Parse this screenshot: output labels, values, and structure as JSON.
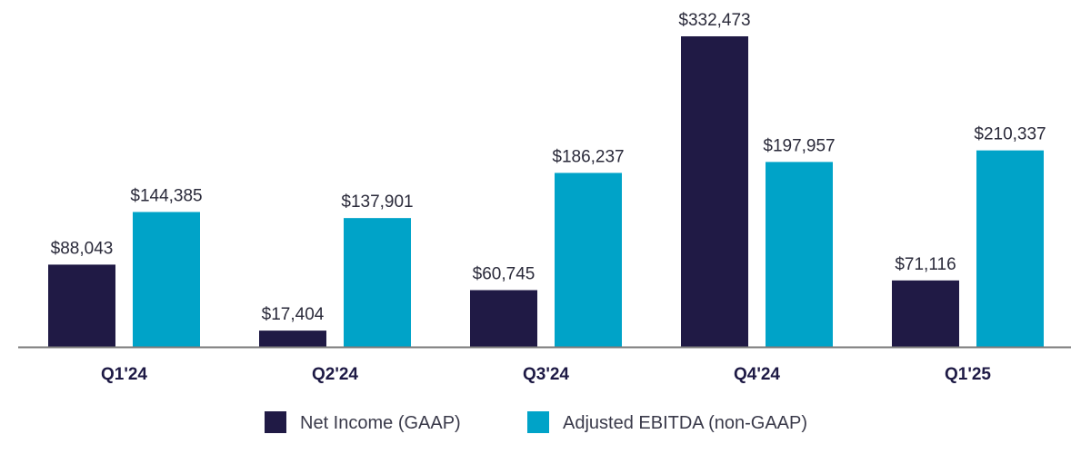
{
  "chart_data": {
    "type": "bar",
    "title": "",
    "xlabel": "",
    "ylabel": "",
    "ylim": [
      0,
      332473
    ],
    "grid": false,
    "legend_position": "bottom-center",
    "categories": [
      "Q1'24",
      "Q2'24",
      "Q3'24",
      "Q4'24",
      "Q1'25"
    ],
    "series": [
      {
        "name": "Net Income (GAAP)",
        "color": "#201a45",
        "values": [
          88043,
          17404,
          60745,
          332473,
          71116
        ],
        "labels": [
          "$88,043",
          "$17,404",
          "$60,745",
          "$332,473",
          "$71,116"
        ]
      },
      {
        "name": "Adjusted EBITDA (non-GAAP)",
        "color": "#00a3c8",
        "values": [
          144385,
          137901,
          186237,
          197957,
          210337
        ],
        "labels": [
          "$144,385",
          "$137,901",
          "$186,237",
          "$197,957",
          "$210,337"
        ]
      }
    ],
    "axis_color": "#7a7a7a"
  }
}
